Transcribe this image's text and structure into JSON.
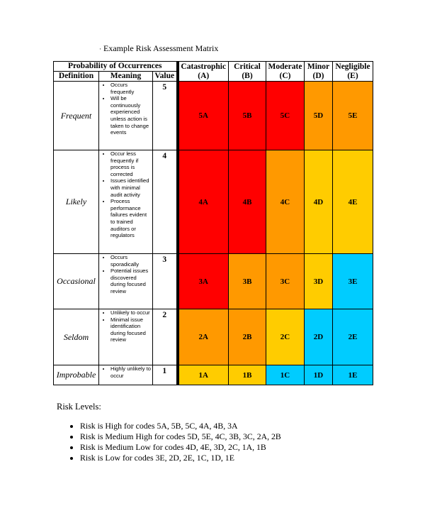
{
  "document": {
    "title": "Example Risk Assessment Matrix"
  },
  "matrix": {
    "probability_header": "Probability of Occurrences",
    "col_definition": "Definition",
    "col_meaning": "Meaning",
    "col_value": "Value",
    "severity": [
      {
        "name": "Catastrophic",
        "code": "(A)"
      },
      {
        "name": "Critical",
        "code": "(B)"
      },
      {
        "name": "Moderate",
        "code": "(C)"
      },
      {
        "name": "Minor",
        "code": "(D)"
      },
      {
        "name": "Negligible",
        "code": "(E)"
      }
    ],
    "rows": [
      {
        "definition": "Frequent",
        "value": "5",
        "meaning": [
          "Occurs frequently",
          "Will be continuously experienced unless action is taken to change events"
        ],
        "cells": [
          "5A",
          "5B",
          "5C",
          "5D",
          "5E"
        ]
      },
      {
        "definition": "Likely",
        "value": "4",
        "meaning": [
          "Occur less frequently if process is corrected",
          "Issues identified with minimal audit activity",
          "Process performance failures evident to trained auditors or regulators"
        ],
        "cells": [
          "4A",
          "4B",
          "4C",
          "4D",
          "4E"
        ]
      },
      {
        "definition": "Occasional",
        "value": "3",
        "meaning": [
          "Occurs sporadically",
          "Potential issues discovered during focused review"
        ],
        "cells": [
          "3A",
          "3B",
          "3C",
          "3D",
          "3E"
        ]
      },
      {
        "definition": "Seldom",
        "value": "2",
        "meaning": [
          "Unlikely to occur",
          "Minimal issue identification during focused review"
        ],
        "cells": [
          "2A",
          "2B",
          "2C",
          "2D",
          "2E"
        ]
      },
      {
        "definition": "Improbable",
        "value": "1",
        "meaning": [
          "Highly unlikely to occur"
        ],
        "cells": [
          "1A",
          "1B",
          "1C",
          "1D",
          "1E"
        ]
      }
    ],
    "cell_colors": [
      [
        "#ff0000",
        "#ff0000",
        "#ff0000",
        "#ff9900",
        "#ff9900"
      ],
      [
        "#ff0000",
        "#ff0000",
        "#ff9900",
        "#ffcc00",
        "#ffcc00"
      ],
      [
        "#ff0000",
        "#ff9900",
        "#ff9900",
        "#ffcc00",
        "#00ccff"
      ],
      [
        "#ff9900",
        "#ff9900",
        "#ffcc00",
        "#00ccff",
        "#00ccff"
      ],
      [
        "#ffcc00",
        "#ffcc00",
        "#00ccff",
        "#00ccff",
        "#00ccff"
      ]
    ]
  },
  "risk_levels": {
    "title": "Risk Levels:",
    "items": [
      "Risk is High for codes 5A, 5B, 5C, 4A, 4B, 3A",
      "Risk is Medium High for codes 5D, 5E, 4C, 3B, 3C, 2A, 2B",
      "Risk is Medium Low for codes 4D, 4E, 3D, 2C, 1A, 1B",
      "Risk is Low for codes 3E, 2D, 2E, 1C, 1D, 1E"
    ]
  }
}
